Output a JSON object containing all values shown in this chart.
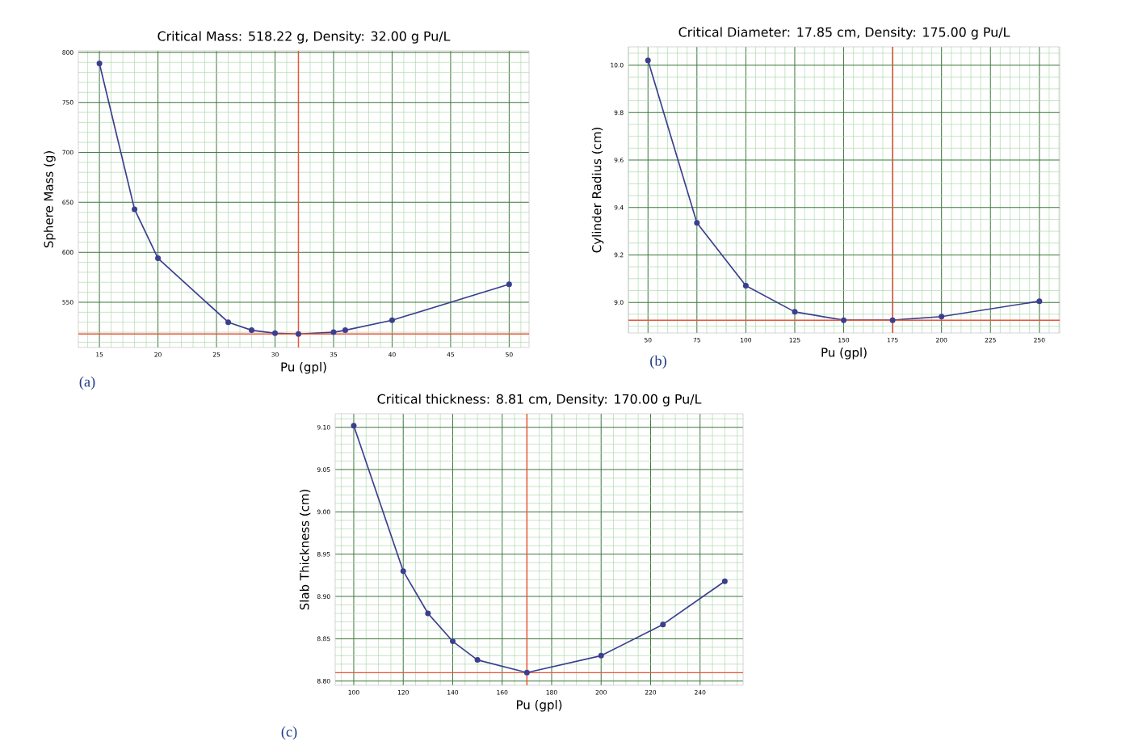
{
  "chart_data": [
    {
      "type": "line",
      "title": "Critical Mass: 518.22 g, Density: 32.00 g Pu/L",
      "xlabel": "Pu (gpl)",
      "ylabel": "Sphere Mass (g)",
      "annotations": [
        "(a)"
      ],
      "x": [
        15,
        18,
        20,
        26,
        28,
        30,
        32,
        35,
        36,
        40,
        50
      ],
      "series": [
        {
          "color": "#3b3f8f",
          "values": [
            789,
            643,
            594,
            530,
            522,
            519,
            518.22,
            520,
            522,
            532,
            568
          ]
        }
      ],
      "xlim": [
        13.2,
        51.7
      ],
      "ylim": [
        504.7,
        801.5
      ],
      "xticks": [
        {
          "value": 14,
          "label": null
        },
        15,
        {
          "value": 16,
          "label": null
        },
        {
          "value": 17,
          "label": null
        },
        {
          "value": 18,
          "label": null
        },
        {
          "value": 19,
          "label": null
        },
        20,
        {
          "value": 21,
          "label": null
        },
        {
          "value": 22,
          "label": null
        },
        {
          "value": 23,
          "label": null
        },
        {
          "value": 24,
          "label": null
        },
        25,
        {
          "value": 26,
          "label": null
        },
        {
          "value": 27,
          "label": null
        },
        {
          "value": 28,
          "label": null
        },
        {
          "value": 29,
          "label": null
        },
        30,
        {
          "value": 31,
          "label": null
        },
        {
          "value": 32,
          "label": null
        },
        {
          "value": 33,
          "label": null
        },
        {
          "value": 34,
          "label": null
        },
        35,
        {
          "value": 36,
          "label": null
        },
        {
          "value": 37,
          "label": null
        },
        {
          "value": 38,
          "label": null
        },
        {
          "value": 39,
          "label": null
        },
        40,
        {
          "value": 41,
          "label": null
        },
        {
          "value": 42,
          "label": null
        },
        {
          "value": 43,
          "label": null
        },
        {
          "value": 44,
          "label": null
        },
        45,
        {
          "value": 46,
          "label": null
        },
        {
          "value": 47,
          "label": null
        },
        {
          "value": 48,
          "label": null
        },
        {
          "value": 49,
          "label": null
        },
        50,
        {
          "value": 51,
          "label": null
        }
      ],
      "yticks": [
        {
          "value": 510,
          "label": null
        },
        {
          "value": 520,
          "label": null
        },
        {
          "value": 530,
          "label": null
        },
        {
          "value": 540,
          "label": null
        },
        550,
        {
          "value": 560,
          "label": null
        },
        {
          "value": 570,
          "label": null
        },
        {
          "value": 580,
          "label": null
        },
        {
          "value": 590,
          "label": null
        },
        600,
        {
          "value": 610,
          "label": null
        },
        {
          "value": 620,
          "label": null
        },
        {
          "value": 630,
          "label": null
        },
        {
          "value": 640,
          "label": null
        },
        650,
        {
          "value": 660,
          "label": null
        },
        {
          "value": 670,
          "label": null
        },
        {
          "value": 680,
          "label": null
        },
        {
          "value": 690,
          "label": null
        },
        700,
        {
          "value": 710,
          "label": null
        },
        {
          "value": 720,
          "label": null
        },
        {
          "value": 730,
          "label": null
        },
        {
          "value": 740,
          "label": null
        },
        750,
        {
          "value": 760,
          "label": null
        },
        {
          "value": 770,
          "label": null
        },
        {
          "value": 780,
          "label": null
        },
        {
          "value": 790,
          "label": null
        },
        800
      ],
      "ref_lines": [
        {
          "axis": "x",
          "value": 32,
          "color": "#e8553a"
        },
        {
          "axis": "y",
          "value": 518.22,
          "color": "#e8553a"
        }
      ],
      "grid": true,
      "marker": "circle",
      "line_style": "solid"
    },
    {
      "type": "line",
      "title": "Critical Diameter: 17.85 cm, Density: 175.00 g Pu/L",
      "xlabel": "Pu (gpl)",
      "ylabel": "Cylinder Radius (cm)",
      "annotations": [
        "(b)"
      ],
      "x": [
        50,
        75,
        100,
        125,
        150,
        175,
        200,
        250
      ],
      "series": [
        {
          "color": "#3b3f8f",
          "values": [
            10.02,
            9.335,
            9.07,
            8.96,
            8.925,
            8.925,
            8.94,
            9.005
          ]
        }
      ],
      "xlim": [
        40,
        260.4
      ],
      "ylim": [
        8.871,
        10.077
      ],
      "xticks": [
        {
          "value": 40,
          "label": null
        },
        {
          "value": 45,
          "label": null
        },
        50,
        {
          "value": 55,
          "label": null
        },
        {
          "value": 60,
          "label": null
        },
        {
          "value": 65,
          "label": null
        },
        {
          "value": 70,
          "label": null
        },
        75,
        {
          "value": 80,
          "label": null
        },
        {
          "value": 85,
          "label": null
        },
        {
          "value": 90,
          "label": null
        },
        {
          "value": 95,
          "label": null
        },
        100,
        {
          "value": 105,
          "label": null
        },
        {
          "value": 110,
          "label": null
        },
        {
          "value": 115,
          "label": null
        },
        {
          "value": 120,
          "label": null
        },
        125,
        {
          "value": 130,
          "label": null
        },
        {
          "value": 135,
          "label": null
        },
        {
          "value": 140,
          "label": null
        },
        {
          "value": 145,
          "label": null
        },
        150,
        {
          "value": 155,
          "label": null
        },
        {
          "value": 160,
          "label": null
        },
        {
          "value": 165,
          "label": null
        },
        {
          "value": 170,
          "label": null
        },
        175,
        {
          "value": 180,
          "label": null
        },
        {
          "value": 185,
          "label": null
        },
        {
          "value": 190,
          "label": null
        },
        {
          "value": 195,
          "label": null
        },
        200,
        {
          "value": 205,
          "label": null
        },
        {
          "value": 210,
          "label": null
        },
        {
          "value": 215,
          "label": null
        },
        {
          "value": 220,
          "label": null
        },
        225,
        {
          "value": 230,
          "label": null
        },
        {
          "value": 235,
          "label": null
        },
        {
          "value": 240,
          "label": null
        },
        {
          "value": 245,
          "label": null
        },
        250,
        {
          "value": 255,
          "label": null
        },
        {
          "value": 260,
          "label": null
        }
      ],
      "yticks": [
        {
          "value": 8.9,
          "label": null
        },
        {
          "value": 8.95,
          "label": null
        },
        {
          "value": 9.0,
          "label": "9.0"
        },
        {
          "value": 9.05,
          "label": null
        },
        {
          "value": 9.1,
          "label": null
        },
        {
          "value": 9.15,
          "label": null
        },
        9.2,
        {
          "value": 9.25,
          "label": null
        },
        {
          "value": 9.3,
          "label": null
        },
        {
          "value": 9.35,
          "label": null
        },
        9.4,
        {
          "value": 9.45,
          "label": null
        },
        {
          "value": 9.5,
          "label": null
        },
        {
          "value": 9.55,
          "label": null
        },
        9.6,
        {
          "value": 9.65,
          "label": null
        },
        {
          "value": 9.7,
          "label": null
        },
        {
          "value": 9.75,
          "label": null
        },
        9.8,
        {
          "value": 9.85,
          "label": null
        },
        {
          "value": 9.9,
          "label": null
        },
        {
          "value": 9.95,
          "label": null
        },
        {
          "value": 10.0,
          "label": "10.0"
        },
        {
          "value": 10.05,
          "label": null
        }
      ],
      "ref_lines": [
        {
          "axis": "x",
          "value": 175,
          "color": "#e8553a"
        },
        {
          "axis": "y",
          "value": 8.925,
          "color": "#e8553a"
        }
      ],
      "grid": true,
      "marker": "circle",
      "line_style": "solid"
    },
    {
      "type": "line",
      "title": "Critical thickness: 8.81 cm, Density: 170.00 g Pu/L",
      "xlabel": "Pu (gpl)",
      "ylabel": "Slab Thickness (cm)",
      "annotations": [
        "(c)"
      ],
      "x": [
        100,
        120,
        130,
        140,
        150,
        170,
        200,
        225,
        250
      ],
      "series": [
        {
          "color": "#3b3f8f",
          "values": [
            9.102,
            8.93,
            8.88,
            8.847,
            8.825,
            8.81,
            8.83,
            8.867,
            8.918
          ]
        }
      ],
      "xlim": [
        92.5,
        257.4
      ],
      "ylim": [
        8.795,
        9.116
      ],
      "xticks": [
        {
          "value": 95,
          "label": null
        },
        100,
        {
          "value": 105,
          "label": null
        },
        {
          "value": 110,
          "label": null
        },
        {
          "value": 115,
          "label": null
        },
        120,
        {
          "value": 125,
          "label": null
        },
        {
          "value": 130,
          "label": null
        },
        {
          "value": 135,
          "label": null
        },
        140,
        {
          "value": 145,
          "label": null
        },
        {
          "value": 150,
          "label": null
        },
        {
          "value": 155,
          "label": null
        },
        160,
        {
          "value": 165,
          "label": null
        },
        {
          "value": 175,
          "label": null
        },
        180,
        {
          "value": 185,
          "label": null
        },
        {
          "value": 190,
          "label": null
        },
        {
          "value": 195,
          "label": null
        },
        200,
        {
          "value": 205,
          "label": null
        },
        {
          "value": 210,
          "label": null
        },
        {
          "value": 215,
          "label": null
        },
        220,
        {
          "value": 225,
          "label": null
        },
        {
          "value": 230,
          "label": null
        },
        {
          "value": 235,
          "label": null
        },
        240,
        {
          "value": 245,
          "label": null
        },
        {
          "value": 250,
          "label": null
        },
        {
          "value": 255,
          "label": null
        }
      ],
      "yticks": [
        {
          "value": 8.8,
          "label": "8.80"
        },
        {
          "value": 8.82,
          "label": null
        },
        {
          "value": 8.83,
          "label": null
        },
        {
          "value": 8.84,
          "label": null
        },
        8.85,
        {
          "value": 8.86,
          "label": null
        },
        {
          "value": 8.87,
          "label": null
        },
        {
          "value": 8.88,
          "label": null
        },
        {
          "value": 8.89,
          "label": null
        },
        {
          "value": 8.9,
          "label": "8.90"
        },
        {
          "value": 8.91,
          "label": null
        },
        {
          "value": 8.92,
          "label": null
        },
        {
          "value": 8.93,
          "label": null
        },
        {
          "value": 8.94,
          "label": null
        },
        8.95,
        {
          "value": 8.96,
          "label": null
        },
        {
          "value": 8.97,
          "label": null
        },
        {
          "value": 8.98,
          "label": null
        },
        {
          "value": 8.99,
          "label": null
        },
        {
          "value": 9.0,
          "label": "9.00"
        },
        {
          "value": 9.01,
          "label": null
        },
        {
          "value": 9.02,
          "label": null
        },
        {
          "value": 9.03,
          "label": null
        },
        {
          "value": 9.04,
          "label": null
        },
        9.05,
        {
          "value": 9.06,
          "label": null
        },
        {
          "value": 9.07,
          "label": null
        },
        {
          "value": 9.08,
          "label": null
        },
        {
          "value": 9.09,
          "label": null
        },
        {
          "value": 9.1,
          "label": "9.10"
        },
        {
          "value": 9.11,
          "label": null
        }
      ],
      "ref_lines": [
        {
          "axis": "x",
          "value": 170,
          "color": "#e8553a"
        },
        {
          "axis": "y",
          "value": 8.81,
          "color": "#e8553a"
        }
      ],
      "grid": true,
      "marker": "circle",
      "line_style": "solid"
    }
  ]
}
